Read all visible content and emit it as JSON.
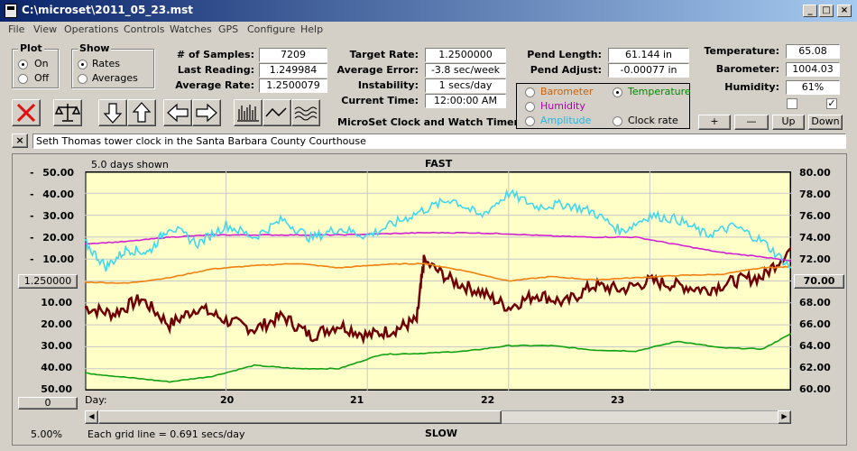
{
  "window": {
    "title": "C:\\microset\\2011_05_23.mst",
    "minimize": "_",
    "maximize": "□",
    "close": "×"
  },
  "menu": [
    "File",
    "View",
    "Operations",
    "Controls",
    "Watches",
    "GPS",
    "Configure",
    "Help"
  ],
  "plot_group": {
    "title": "Plot",
    "on": "On",
    "off": "Off",
    "selected": "On"
  },
  "show_group": {
    "title": "Show",
    "rates": "Rates",
    "averages": "Averages",
    "selected": "Rates"
  },
  "stats": {
    "samples_label": "# of Samples:",
    "samples": "7209",
    "last_label": "Last Reading:",
    "last": "1.249984",
    "avg_label": "Average Rate:",
    "avg": "1.2500079",
    "target_label": "Target Rate:",
    "target": "1.2500000",
    "avgerr_label": "Average Error:",
    "avgerr": "-3.8 sec/week",
    "instab_label": "Instability:",
    "instab": "1 secs/day",
    "time_label": "Current Time:",
    "time": "12:00:00 AM",
    "pendlen_label": "Pend Length:",
    "pendlen": "61.144 in",
    "pendadj_label": "Pend Adjust:",
    "pendadj": "-0.00077 in",
    "temp_label": "Temperature:",
    "temp": "65.08",
    "baro_label": "Barometer:",
    "baro": "1004.03",
    "hum_label": "Humidity:",
    "hum": "61%"
  },
  "app_title": "MicroSet Clock and Watch Timer",
  "overlay_options": {
    "barometer": "Barometer",
    "temperature": "Temperature",
    "humidity": "Humidity",
    "amplitude": "Amplitude",
    "clock_rate": "Clock rate",
    "selected": "Temperature"
  },
  "adjust_buttons": {
    "plus": "+",
    "minus": "—",
    "up": "Up",
    "down": "Down"
  },
  "toolbar_icons": [
    "stop-icon",
    "balance-icon",
    "arrow-down-icon",
    "arrow-up-icon",
    "arrow-left-icon",
    "arrow-right-icon",
    "bars-plot-icon",
    "line-plot-icon",
    "wave-plot-icon"
  ],
  "description": {
    "close": "×",
    "text": "Seth Thomas tower clock in the Santa Barbara County Courthouse"
  },
  "chart_header": {
    "days_shown": "5.0 days shown",
    "fast": "FAST",
    "slow": "SLOW",
    "grid_line": "Each grid line = 0.691 secs/day",
    "zoom": "5.00%"
  },
  "rate_box": "1.250000",
  "temp_box": "70.00",
  "zero_box": "0",
  "colors": {
    "rate": "#700000",
    "temperature": "#10a010",
    "barometer": "#f08010",
    "humidity": "#d020d0",
    "amplitude": "#40d8f0",
    "plot_bg": "#ffffc8",
    "grid": "#c8c8c8"
  },
  "chart_data": {
    "type": "line",
    "x_axis": {
      "label": "Day:",
      "ticks": [
        "20",
        "21",
        "22",
        "23"
      ],
      "range_days": [
        19.0,
        24.0
      ]
    },
    "y_left": {
      "ticks": [
        "50.00",
        "40.00",
        "30.00",
        "20.00",
        "10.00",
        "1.250000",
        "10.00",
        "20.00",
        "30.00",
        "40.00",
        "50.00"
      ],
      "range": [
        -50,
        50
      ]
    },
    "y_right": {
      "ticks": [
        "80.00",
        "78.00",
        "76.00",
        "74.00",
        "72.00",
        "70.00",
        "68.00",
        "66.00",
        "64.00",
        "62.00",
        "60.00"
      ],
      "range": [
        60,
        80
      ]
    },
    "series": [
      {
        "key": "rate",
        "x": [
          19.0,
          19.2,
          19.4,
          19.6,
          19.8,
          20.0,
          20.2,
          20.4,
          20.6,
          20.8,
          21.0,
          21.2,
          21.35,
          21.4,
          21.6,
          21.8,
          22.0,
          22.2,
          22.4,
          22.6,
          22.8,
          23.0,
          23.2,
          23.4,
          23.6,
          23.8,
          24.0
        ],
        "y": [
          -12,
          -15,
          -8,
          -20,
          -12,
          -18,
          -22,
          -16,
          -25,
          -20,
          -25,
          -22,
          -18,
          9,
          0,
          -5,
          -12,
          -6,
          -10,
          -2,
          -4,
          0,
          -2,
          -4,
          0,
          2,
          15
        ]
      },
      {
        "key": "temperature",
        "x": [
          19.0,
          19.3,
          19.6,
          19.9,
          20.2,
          20.5,
          20.8,
          21.1,
          21.4,
          21.7,
          22.0,
          22.3,
          22.6,
          22.9,
          23.2,
          23.5,
          23.8,
          24.0
        ],
        "y": [
          61.6,
          61.2,
          60.8,
          61.3,
          62.3,
          62.0,
          62.0,
          63.3,
          63.4,
          63.6,
          64.1,
          64.1,
          63.7,
          63.6,
          64.5,
          63.9,
          63.8,
          65.2
        ]
      },
      {
        "key": "barometer",
        "x": [
          19.0,
          19.3,
          19.6,
          19.9,
          20.2,
          20.5,
          20.8,
          21.1,
          21.4,
          21.7,
          22.0,
          22.3,
          22.6,
          22.9,
          23.2,
          23.5,
          23.8,
          24.0
        ],
        "y": [
          69.9,
          69.8,
          70.3,
          71.1,
          71.4,
          71.6,
          71.2,
          71.5,
          71.6,
          70.9,
          70.0,
          70.4,
          70.1,
          70.3,
          70.5,
          70.6,
          71.2,
          71.3
        ]
      },
      {
        "key": "humidity",
        "x": [
          19.0,
          19.3,
          19.6,
          19.9,
          20.2,
          20.5,
          20.8,
          21.1,
          21.4,
          21.7,
          22.0,
          22.3,
          22.6,
          22.9,
          23.2,
          23.5,
          23.8,
          24.0
        ],
        "y": [
          73.4,
          73.6,
          74.0,
          74.2,
          74.2,
          74.2,
          74.2,
          74.3,
          74.4,
          74.4,
          74.3,
          74.1,
          74.0,
          74.0,
          73.3,
          72.6,
          72.2,
          71.8
        ]
      },
      {
        "key": "amplitude",
        "x": [
          19.0,
          19.15,
          19.3,
          19.45,
          19.6,
          19.8,
          20.0,
          20.2,
          20.4,
          20.6,
          20.8,
          21.0,
          21.2,
          21.4,
          21.6,
          21.8,
          22.0,
          22.2,
          22.4,
          22.6,
          22.8,
          23.0,
          23.2,
          23.4,
          23.6,
          23.8,
          24.0
        ],
        "y": [
          73.5,
          71.3,
          72.9,
          72.6,
          75.0,
          73.4,
          75.1,
          74.0,
          75.6,
          73.9,
          74.8,
          74.1,
          75.3,
          76.5,
          77.5,
          75.9,
          78.0,
          76.8,
          77.0,
          76.3,
          74.5,
          76.0,
          75.6,
          74.2,
          75.0,
          73.6,
          71.2
        ]
      }
    ]
  }
}
